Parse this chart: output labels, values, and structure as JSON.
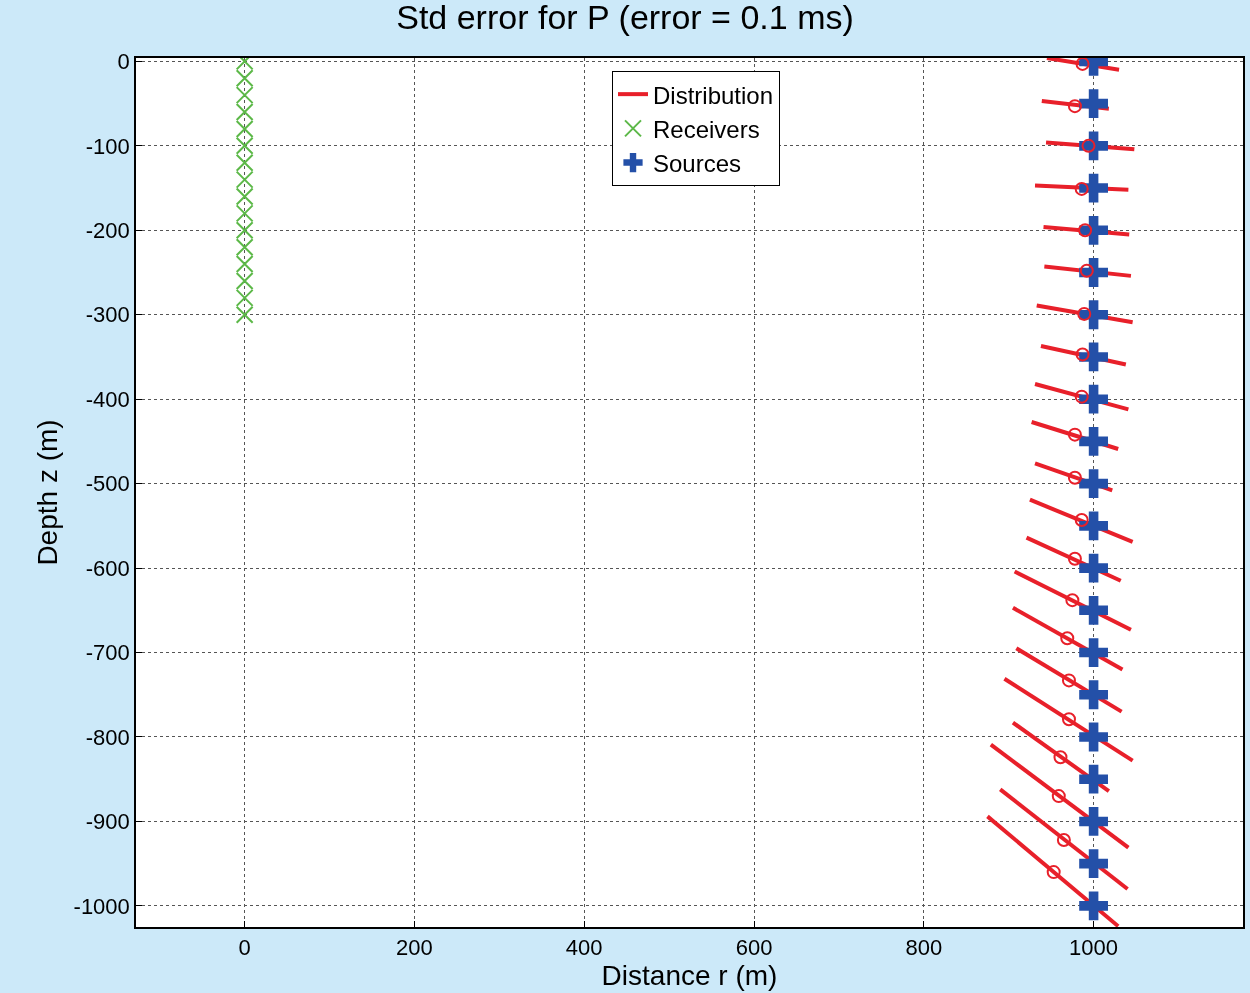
{
  "chart_data": {
    "type": "scatter",
    "title": "Std error for P (error = 0.1 ms)",
    "xlabel": "Distance r (m)",
    "ylabel": "Depth z (m)",
    "xlim": [
      -128,
      1176
    ],
    "ylim": [
      -1025,
      4
    ],
    "xticks": [
      0,
      200,
      400,
      600,
      800,
      1000
    ],
    "yticks": [
      0,
      -100,
      -200,
      -300,
      -400,
      -500,
      -600,
      -700,
      -800,
      -900,
      -1000
    ],
    "grid": true,
    "legend": "top",
    "series": [
      {
        "type": "line",
        "name": "Distribution",
        "color": "#e8202a",
        "marker": "none",
        "x": [
          945,
          1030
        ],
        "values": [
          4,
          -10
        ]
      },
      {
        "type": "line",
        "color": "#e8202a",
        "marker": "none",
        "x": [
          939,
          1018
        ],
        "values": [
          -47,
          -56
        ]
      },
      {
        "type": "line",
        "color": "#e8202a",
        "marker": "none",
        "x": [
          944,
          1048
        ],
        "values": [
          -96,
          -104
        ]
      },
      {
        "type": "line",
        "color": "#e8202a",
        "marker": "none",
        "x": [
          931,
          1041
        ],
        "values": [
          -147,
          -152
        ]
      },
      {
        "type": "line",
        "color": "#e8202a",
        "marker": "none",
        "x": [
          941,
          1042
        ],
        "values": [
          -196,
          -205
        ]
      },
      {
        "type": "line",
        "color": "#e8202a",
        "marker": "none",
        "x": [
          942,
          1044
        ],
        "values": [
          -243,
          -254
        ]
      },
      {
        "type": "line",
        "color": "#e8202a",
        "marker": "none",
        "x": [
          933,
          1046
        ],
        "values": [
          -289,
          -309
        ]
      },
      {
        "type": "line",
        "color": "#e8202a",
        "marker": "none",
        "x": [
          938,
          1038
        ],
        "values": [
          -337,
          -359
        ]
      },
      {
        "type": "line",
        "color": "#e8202a",
        "marker": "none",
        "x": [
          931,
          1041
        ],
        "values": [
          -382,
          -412
        ]
      },
      {
        "type": "line",
        "color": "#e8202a",
        "marker": "none",
        "x": [
          927,
          1029
        ],
        "values": [
          -427,
          -459
        ]
      },
      {
        "type": "line",
        "color": "#e8202a",
        "marker": "none",
        "x": [
          931,
          1022
        ],
        "values": [
          -476,
          -508
        ]
      },
      {
        "type": "line",
        "color": "#e8202a",
        "marker": "none",
        "x": [
          925,
          1046
        ],
        "values": [
          -519,
          -569
        ]
      },
      {
        "type": "line",
        "color": "#e8202a",
        "marker": "none",
        "x": [
          921,
          1032
        ],
        "values": [
          -564,
          -615
        ]
      },
      {
        "type": "line",
        "color": "#e8202a",
        "marker": "none",
        "x": [
          907,
          1044
        ],
        "values": [
          -604,
          -673
        ]
      },
      {
        "type": "line",
        "color": "#e8202a",
        "marker": "none",
        "x": [
          905,
          1034
        ],
        "values": [
          -647,
          -720
        ]
      },
      {
        "type": "line",
        "color": "#e8202a",
        "marker": "none",
        "x": [
          909,
          1033
        ],
        "values": [
          -695,
          -770
        ]
      },
      {
        "type": "line",
        "color": "#e8202a",
        "marker": "none",
        "x": [
          895,
          1046
        ],
        "values": [
          -731,
          -828
        ]
      },
      {
        "type": "line",
        "color": "#e8202a",
        "marker": "none",
        "x": [
          905,
          1018
        ],
        "values": [
          -783,
          -864
        ]
      },
      {
        "type": "line",
        "color": "#e8202a",
        "marker": "none",
        "x": [
          879,
          1041
        ],
        "values": [
          -809,
          -931
        ]
      },
      {
        "type": "line",
        "color": "#e8202a",
        "marker": "none",
        "x": [
          890,
          1040
        ],
        "values": [
          -862,
          -980
        ]
      },
      {
        "type": "line",
        "color": "#e8202a",
        "marker": "none",
        "x": [
          875,
          1029
        ],
        "values": [
          -894,
          -1024
        ]
      },
      {
        "color": "#e8202a",
        "marker": "circle",
        "x": [
          987,
          978,
          994,
          986,
          990,
          992,
          989,
          987,
          986,
          978,
          978,
          986,
          978,
          975,
          969,
          971,
          971,
          961,
          959,
          965,
          953
        ],
        "values": [
          -3,
          -53,
          -100,
          -151,
          -200,
          -248,
          -299,
          -347,
          -397,
          -442,
          -493,
          -543,
          -589,
          -638,
          -683,
          -733,
          -779,
          -824,
          -870,
          -922,
          -960
        ]
      },
      {
        "name": "Receivers",
        "color": "#5cb848",
        "marker": "cross",
        "x": [
          0,
          0,
          0,
          0,
          0,
          0,
          0,
          0,
          0,
          0,
          0,
          0,
          0,
          0,
          0,
          0
        ],
        "values": [
          0,
          -20,
          -40,
          -60,
          -80,
          -100,
          -120,
          -140,
          -160,
          -180,
          -200,
          -220,
          -240,
          -260,
          -280,
          -300
        ]
      },
      {
        "name": "Sources",
        "color": "#2450a8",
        "marker": "cross",
        "x": [
          1000,
          1000,
          1000,
          1000,
          1000,
          1000,
          1000,
          1000,
          1000,
          1000,
          1000,
          1000,
          1000,
          1000,
          1000,
          1000,
          1000,
          1000,
          1000,
          1000,
          1000
        ],
        "values": [
          0,
          -50,
          -100,
          -150,
          -200,
          -250,
          -300,
          -350,
          -400,
          -450,
          -500,
          -550,
          -600,
          -650,
          -700,
          -750,
          -800,
          -850,
          -900,
          -950,
          -1000
        ]
      }
    ]
  }
}
